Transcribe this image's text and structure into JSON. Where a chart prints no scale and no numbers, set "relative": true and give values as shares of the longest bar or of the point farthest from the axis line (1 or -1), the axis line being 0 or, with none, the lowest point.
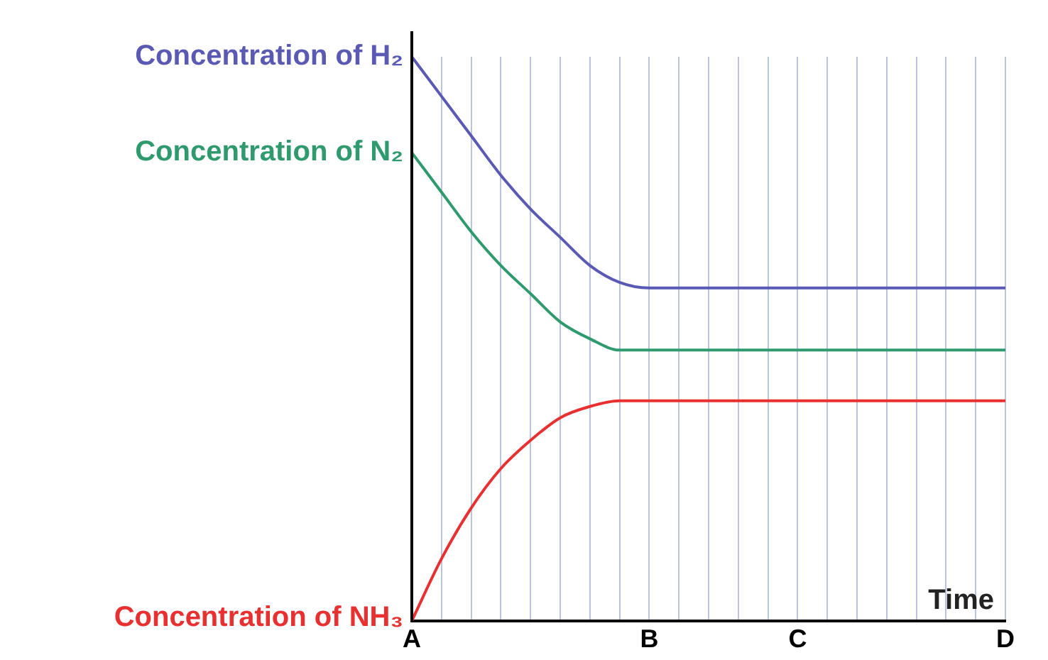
{
  "chart_data": {
    "type": "line",
    "relative": true,
    "xlabel": "Time",
    "categories": [
      "A",
      null,
      null,
      null,
      null,
      null,
      null,
      null,
      "B",
      null,
      null,
      null,
      null,
      "C",
      null,
      null,
      null,
      null,
      null,
      null,
      "D"
    ],
    "series": [
      {
        "name": "Concentration of H₂",
        "color": "#5a5ab4",
        "values": [
          1,
          0.93,
          0.86,
          0.79,
          0.73,
          0.68,
          0.63,
          0.6,
          0.59,
          0.59,
          0.59,
          0.59,
          0.59,
          0.59,
          0.59,
          0.59,
          0.59,
          0.59,
          0.59,
          0.59,
          0.59
        ]
      },
      {
        "name": "Concentration of N₂",
        "color": "#2e9a6e",
        "values": [
          0.83,
          0.76,
          0.69,
          0.63,
          0.58,
          0.53,
          0.5,
          0.48,
          0.48,
          0.48,
          0.48,
          0.48,
          0.48,
          0.48,
          0.48,
          0.48,
          0.48,
          0.48,
          0.48,
          0.48,
          0.48
        ]
      },
      {
        "name": "Concentration of NH₃",
        "color": "#e83030",
        "values": [
          0,
          0.11,
          0.2,
          0.27,
          0.32,
          0.36,
          0.38,
          0.39,
          0.39,
          0.39,
          0.39,
          0.39,
          0.39,
          0.39,
          0.39,
          0.39,
          0.39,
          0.39,
          0.39,
          0.39,
          0.39
        ]
      }
    ],
    "grid": "x",
    "legend": false,
    "marker": "none",
    "line_style": "solid"
  }
}
